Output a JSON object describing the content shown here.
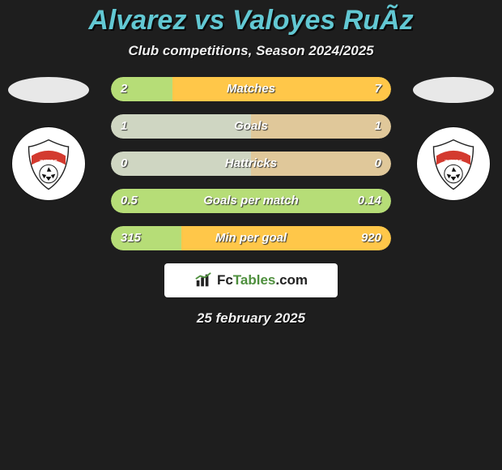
{
  "title": "Alvarez vs Valoyes RuÃ­z",
  "subtitle": "Club competitions, Season 2024/2025",
  "date": "25 february 2025",
  "brand": {
    "icon": "chart-icon",
    "text_prefix": "Fc",
    "text_main": "Tables",
    "text_suffix": ".com"
  },
  "colors": {
    "title": "#62c8d3",
    "background": "#1e1e1e",
    "left_fill": "#b6dd77",
    "right_fill": "#ffc749",
    "neutral_fill": "#cfd6c2",
    "neutral_fill_alt": "#e0c89a"
  },
  "left_team": {
    "flag_color": "#e8e8e8",
    "club_label": "INDIOS",
    "club_banner": "#d33a2f"
  },
  "right_team": {
    "flag_color": "#e8e8e8",
    "club_label": "INDIOS",
    "club_banner": "#d33a2f"
  },
  "rows": [
    {
      "label": "Matches",
      "left": "2",
      "right": "7",
      "left_pct": 22,
      "right_pct": 78,
      "left_color": "#b6dd77",
      "right_color": "#ffc749",
      "win": "right"
    },
    {
      "label": "Goals",
      "left": "1",
      "right": "1",
      "left_pct": 50,
      "right_pct": 50,
      "left_color": "#cfd6c2",
      "right_color": "#e0c89a",
      "win": "tie"
    },
    {
      "label": "Hattricks",
      "left": "0",
      "right": "0",
      "left_pct": 50,
      "right_pct": 50,
      "left_color": "#cfd6c2",
      "right_color": "#e0c89a",
      "win": "tie"
    },
    {
      "label": "Goals per match",
      "left": "0.5",
      "right": "0.14",
      "left_pct": 100,
      "right_pct": 0,
      "left_color": "#b6dd77",
      "right_color": "#b6dd77",
      "win": "left"
    },
    {
      "label": "Min per goal",
      "left": "315",
      "right": "920",
      "left_pct": 25,
      "right_pct": 75,
      "left_color": "#b6dd77",
      "right_color": "#ffc749",
      "win": "right"
    }
  ]
}
